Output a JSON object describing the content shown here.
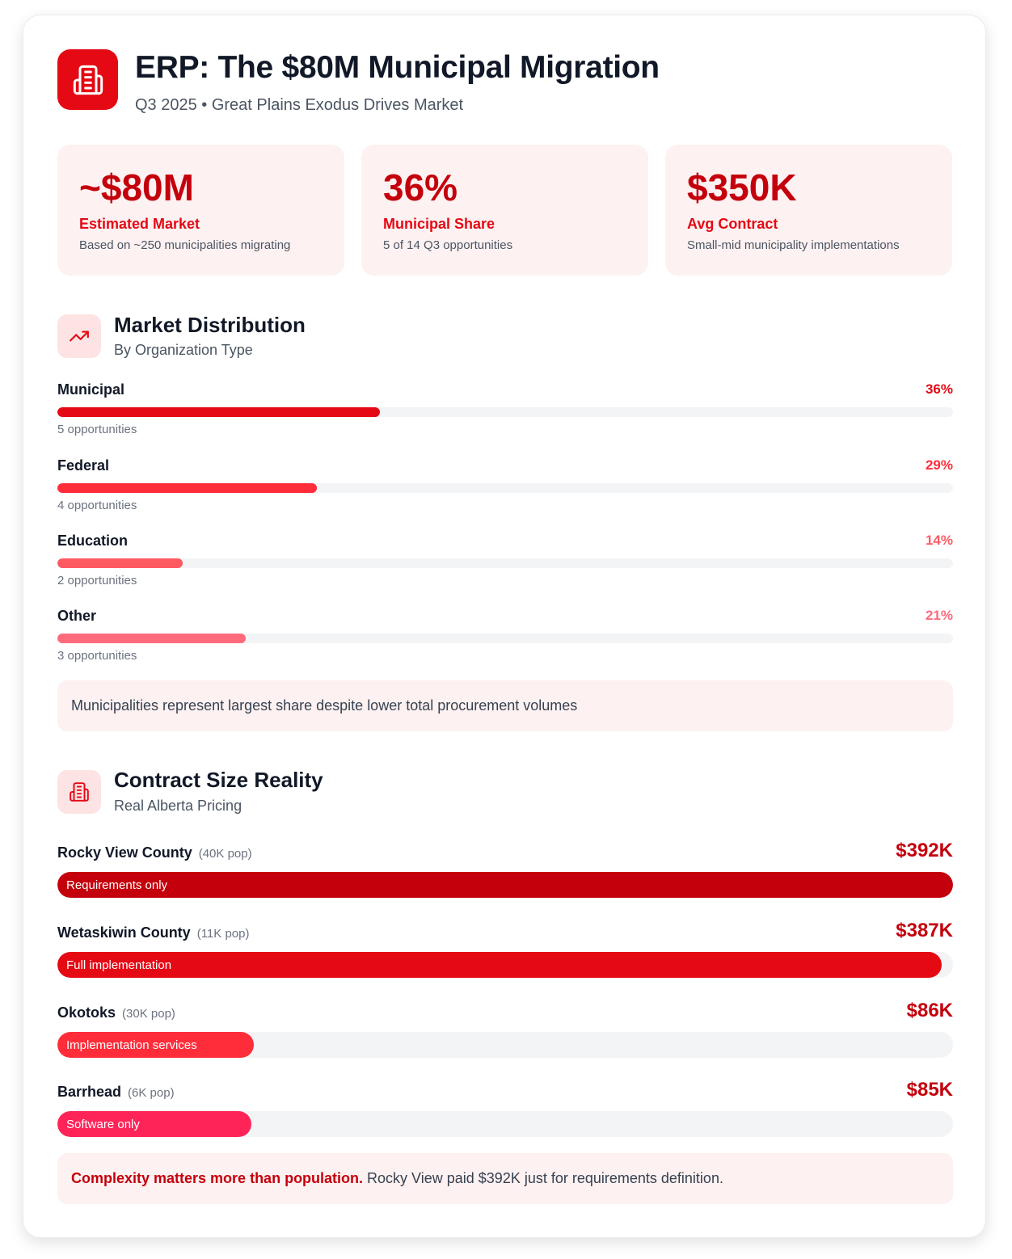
{
  "header": {
    "icon": "building-icon",
    "title": "ERP: The $80M Municipal Migration",
    "subtitle": "Q3 2025 • Great Plains Exodus Drives Market"
  },
  "stats": [
    {
      "value": "~$80M",
      "label": "Estimated Market",
      "desc": "Based on ~250 municipalities migrating"
    },
    {
      "value": "36%",
      "label": "Municipal Share",
      "desc": "5 of 14 Q3 opportunities"
    },
    {
      "value": "$350K",
      "label": "Avg Contract",
      "desc": "Small-mid municipality implementations"
    }
  ],
  "distribution": {
    "icon": "trending-up-icon",
    "title": "Market Distribution",
    "subtitle": "By Organization Type",
    "rows": [
      {
        "label": "Municipal",
        "pct_text": "36%",
        "pct": 36,
        "count": "5 opportunities",
        "color": "#e50914"
      },
      {
        "label": "Federal",
        "pct_text": "29%",
        "pct": 29,
        "count": "4 opportunities",
        "color": "#ff2d3a"
      },
      {
        "label": "Education",
        "pct_text": "14%",
        "pct": 14,
        "count": "2 opportunities",
        "color": "#ff5a64"
      },
      {
        "label": "Other",
        "pct_text": "21%",
        "pct": 21,
        "count": "3 opportunities",
        "color": "#ff6b7c"
      }
    ],
    "note": "Municipalities represent largest share despite lower total procurement volumes"
  },
  "contracts": {
    "icon": "building-icon",
    "title": "Contract Size Reality",
    "subtitle": "Real Alberta Pricing",
    "rows": [
      {
        "name": "Rocky View County",
        "pop": "(40K pop)",
        "amount": "$392K",
        "value": 392,
        "scope": "Requirements only",
        "color": "#c4000c"
      },
      {
        "name": "Wetaskiwin County",
        "pop": "(11K pop)",
        "amount": "$387K",
        "value": 387,
        "scope": "Full implementation",
        "color": "#e50914"
      },
      {
        "name": "Okotoks",
        "pop": "(30K pop)",
        "amount": "$86K",
        "value": 86,
        "scope": "Implementation services",
        "color": "#ff2d3a"
      },
      {
        "name": "Barrhead",
        "pop": "(6K pop)",
        "amount": "$85K",
        "value": 85,
        "scope": "Software only",
        "color": "#ff2458"
      }
    ],
    "note_strong": "Complexity matters more than population.",
    "note_rest": " Rocky View paid $392K just for requirements definition."
  }
}
